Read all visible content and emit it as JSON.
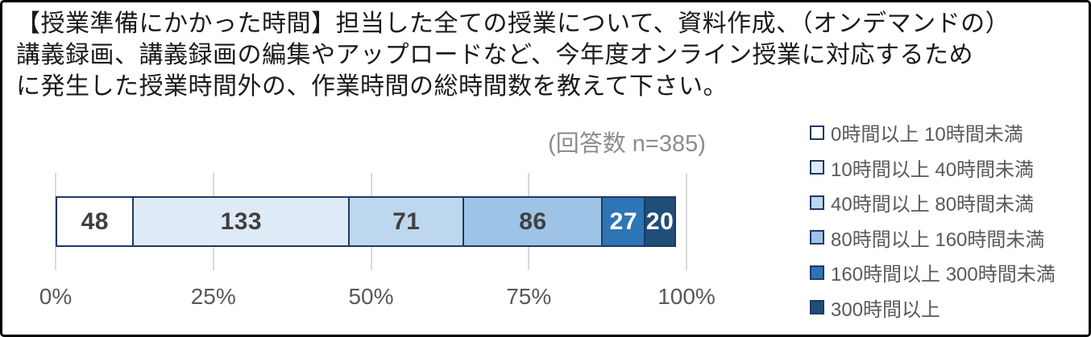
{
  "title_lines": [
    "【授業準備にかかった時間】担当した全ての授業について、資料作成、（オンデマンドの）",
    "講義録画、講義録画の編集やアップロードなど、今年度オンライン授業に対応するため",
    "に発生した授業時間外の、作業時間の総時間数を教えて下さい。"
  ],
  "annotation": "(回答数 n=385)",
  "chart_data": {
    "type": "bar",
    "orientation": "horizontal-stacked",
    "title": "【授業準備にかかった時間】担当した全ての授業について、資料作成、（オンデマンドの）講義録画、講義録画の編集やアップロードなど、今年度オンライン授業に対応するために発生した授業時間外の、作業時間の総時間数を教えて下さい。",
    "annotation": "(回答数 n=385)",
    "n_total": 385,
    "categories": [
      "0時間以上 10時間未満",
      "10時間以上 40時間未満",
      "40時間以上 80時間未満",
      "80時間以上 160時間未満",
      "160時間以上 300時間未満",
      "300時間以上"
    ],
    "values": [
      48,
      133,
      71,
      86,
      27,
      20
    ],
    "colors": [
      "#FFFFFF",
      "#DEEBF7",
      "#BDD7EE",
      "#9DC3E6",
      "#2E75B6",
      "#1F4E79"
    ],
    "value_label_colors": [
      "#404040",
      "#404040",
      "#404040",
      "#404040",
      "#FFFFFF",
      "#FFFFFF"
    ],
    "bar_border_color": "#203864",
    "grid_color": "#D9D9D9",
    "x_ticks": [
      "0%",
      "25%",
      "50%",
      "75%",
      "100%"
    ],
    "xlim": [
      0,
      100
    ],
    "grid": true,
    "legend_position": "right"
  }
}
